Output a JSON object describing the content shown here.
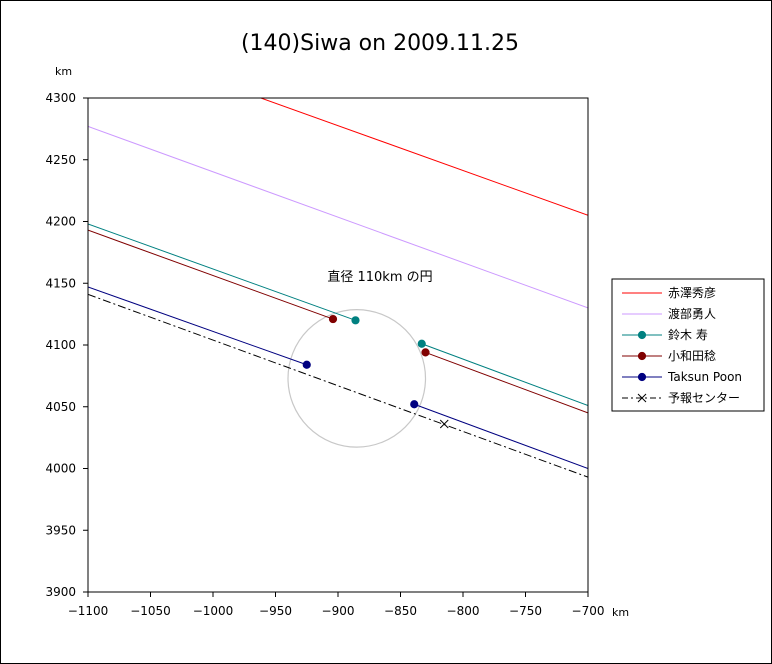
{
  "chart_data": {
    "type": "line",
    "title": "(140)Siwa on 2009.11.25",
    "x_unit": "km",
    "y_unit": "km",
    "xlim": [
      -1100,
      -700
    ],
    "ylim": [
      3900,
      4300
    ],
    "x_ticks": [
      -1100,
      -1050,
      -1000,
      -950,
      -900,
      -850,
      -800,
      -750,
      -700
    ],
    "y_ticks": [
      3900,
      3950,
      4000,
      4050,
      4100,
      4150,
      4200,
      4250,
      4300
    ],
    "grid": false,
    "annotation": "直径 110km の円",
    "circle": {
      "cx": -885,
      "cy": 4073,
      "r": 55,
      "color": "#c8c8c8"
    },
    "legend_position": "right",
    "series": [
      {
        "name": "赤澤秀彦",
        "color": "#ff0000",
        "style": "solid",
        "marker": "none",
        "segments": [
          [
            [
              -970,
              4303
            ],
            [
              -700,
              4205
            ]
          ]
        ]
      },
      {
        "name": "渡部勇人",
        "color": "#cc99ff",
        "style": "solid",
        "marker": "none",
        "segments": [
          [
            [
              -1100,
              4277
            ],
            [
              -700,
              4130
            ]
          ]
        ]
      },
      {
        "name": "鈴木 寿",
        "color": "#008080",
        "style": "solid",
        "marker": "circle",
        "segments": [
          [
            [
              -1100,
              4198
            ],
            [
              -886,
              4120
            ]
          ],
          [
            [
              -833,
              4101
            ],
            [
              -700,
              4051
            ]
          ]
        ]
      },
      {
        "name": "小和田稔",
        "color": "#800000",
        "style": "solid",
        "marker": "circle",
        "segments": [
          [
            [
              -1100,
              4193
            ],
            [
              -904,
              4121
            ]
          ],
          [
            [
              -830,
              4094
            ],
            [
              -700,
              4045
            ]
          ]
        ]
      },
      {
        "name": "Taksun Poon",
        "color": "#000080",
        "style": "solid",
        "marker": "circle",
        "segments": [
          [
            [
              -1100,
              4147
            ],
            [
              -925,
              4084
            ]
          ],
          [
            [
              -839,
              4052
            ],
            [
              -700,
              4000
            ]
          ]
        ]
      },
      {
        "name": "予報センター",
        "color": "#000000",
        "style": "dashdot",
        "marker": "x",
        "segments": [
          [
            [
              -1100,
              4141
            ],
            [
              -700,
              3993
            ]
          ]
        ],
        "points": [
          [
            -815,
            4036
          ]
        ]
      }
    ]
  }
}
